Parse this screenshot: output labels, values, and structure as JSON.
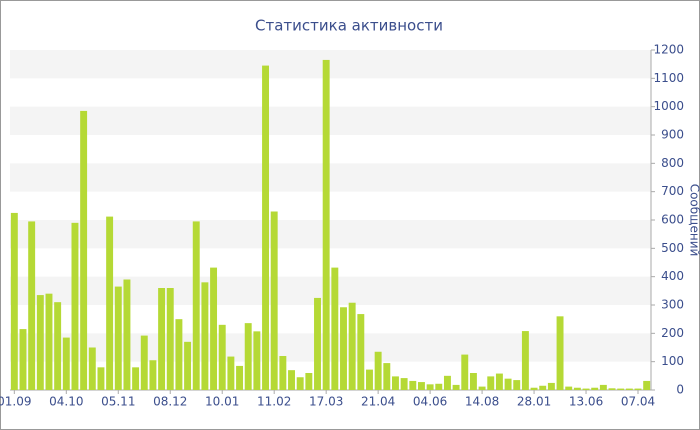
{
  "chart_data": {
    "type": "bar",
    "title": "Статистика активности",
    "y_label": "Сообщений",
    "categories": [
      "01.09",
      null,
      null,
      null,
      null,
      null,
      "04.10",
      null,
      null,
      null,
      null,
      null,
      "05.11",
      null,
      null,
      null,
      null,
      null,
      "08.12",
      null,
      null,
      null,
      null,
      null,
      "10.01",
      null,
      null,
      null,
      null,
      null,
      "11.02",
      null,
      null,
      null,
      null,
      null,
      "17.03",
      null,
      null,
      null,
      null,
      null,
      "21.04",
      null,
      null,
      null,
      null,
      null,
      "04.06",
      null,
      null,
      null,
      null,
      null,
      "14.08",
      null,
      null,
      null,
      null,
      null,
      "28.01",
      null,
      null,
      null,
      null,
      null,
      "13.06",
      null,
      null,
      null,
      null,
      null,
      "07.04",
      null
    ],
    "values": [
      625,
      215,
      595,
      335,
      340,
      310,
      185,
      590,
      985,
      150,
      80,
      612,
      365,
      390,
      80,
      192,
      105,
      360,
      360,
      250,
      170,
      595,
      380,
      432,
      230,
      118,
      85,
      236,
      207,
      1145,
      630,
      120,
      70,
      45,
      60,
      325,
      1165,
      432,
      292,
      308,
      268,
      72,
      135,
      95,
      48,
      42,
      32,
      28,
      20,
      22,
      50,
      18,
      125,
      60,
      12,
      48,
      58,
      40,
      35,
      208,
      8,
      15,
      25,
      260,
      12,
      8,
      5,
      8,
      18,
      6,
      5,
      5,
      5,
      32
    ],
    "color": "#b5d935",
    "ylim": [
      0,
      1200
    ],
    "yticks": [
      0,
      100,
      200,
      300,
      400,
      500,
      600,
      700,
      800,
      900,
      1000,
      1100,
      1200
    ],
    "grid": true
  }
}
